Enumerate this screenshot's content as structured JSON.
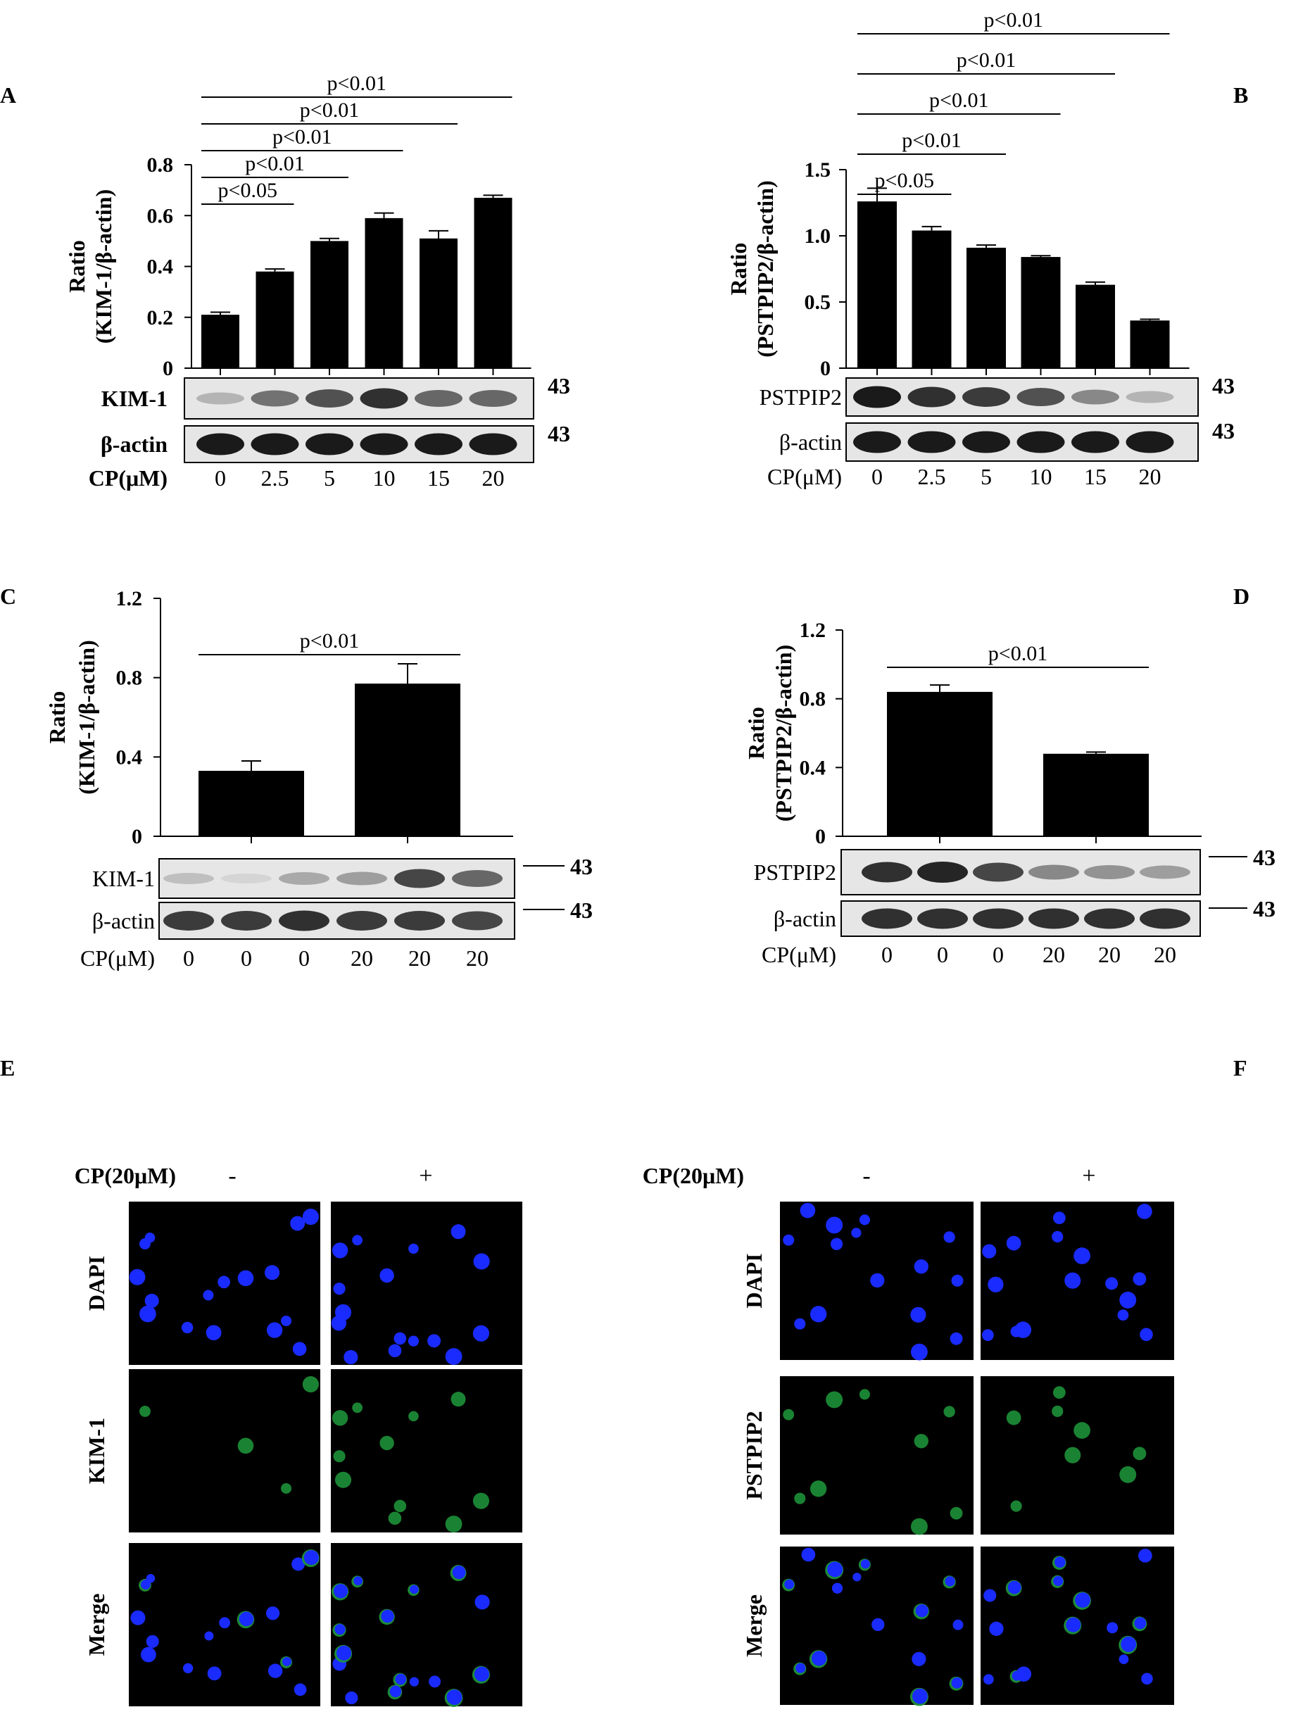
{
  "panels": {
    "A": {
      "letter": "A"
    },
    "B": {
      "letter": "B"
    },
    "C": {
      "letter": "C"
    },
    "D": {
      "letter": "D"
    },
    "E": {
      "letter": "E"
    },
    "F": {
      "letter": "F"
    }
  },
  "chart_data": [
    {
      "id": "A",
      "type": "bar",
      "categories": [
        "0",
        "2.5",
        "5",
        "10",
        "15",
        "20"
      ],
      "values": [
        0.21,
        0.38,
        0.5,
        0.59,
        0.51,
        0.67
      ],
      "errors": [
        0.01,
        0.01,
        0.01,
        0.02,
        0.03,
        0.01
      ],
      "ylim": [
        0,
        0.8
      ],
      "yticks": [
        "0",
        "0.2",
        "0.4",
        "0.6",
        "0.8"
      ],
      "ylabel": [
        "Ratio",
        "(KIM-1/β-actin)"
      ],
      "xlabel": "CP(μM)",
      "significance": [
        {
          "from": 0,
          "to": 1,
          "label": "p<0.05"
        },
        {
          "from": 0,
          "to": 2,
          "label": "p<0.01"
        },
        {
          "from": 0,
          "to": 3,
          "label": "p<0.01"
        },
        {
          "from": 0,
          "to": 4,
          "label": "p<0.01"
        },
        {
          "from": 0,
          "to": 5,
          "label": "p<0.01"
        }
      ],
      "blots": [
        {
          "label": "KIM-1",
          "marker": "43",
          "intensity": [
            0.25,
            0.55,
            0.7,
            0.85,
            0.6,
            0.6
          ]
        },
        {
          "label": "β-actin",
          "marker": "43",
          "intensity": [
            0.95,
            0.95,
            0.95,
            0.95,
            0.95,
            0.95
          ]
        }
      ]
    },
    {
      "id": "B",
      "type": "bar",
      "categories": [
        "0",
        "2.5",
        "5",
        "10",
        "15",
        "20"
      ],
      "values": [
        1.26,
        1.04,
        0.91,
        0.84,
        0.63,
        0.36
      ],
      "errors": [
        0.1,
        0.03,
        0.02,
        0.01,
        0.02,
        0.01
      ],
      "ylim": [
        0,
        1.5
      ],
      "yticks": [
        "0",
        "0.5",
        "1.0",
        "1.5"
      ],
      "ylabel": [
        "Ratio",
        "(PSTPIP2/β-actin)"
      ],
      "xlabel": "CP(μM)",
      "significance": [
        {
          "from": 0,
          "to": 1,
          "label": "p<0.05"
        },
        {
          "from": 0,
          "to": 2,
          "label": "p<0.01"
        },
        {
          "from": 0,
          "to": 3,
          "label": "p<0.01"
        },
        {
          "from": 0,
          "to": 4,
          "label": "p<0.01"
        },
        {
          "from": 0,
          "to": 5,
          "label": "p<0.01"
        }
      ],
      "blots": [
        {
          "label": "PSTPIP2",
          "marker": "43",
          "intensity": [
            0.95,
            0.85,
            0.8,
            0.7,
            0.45,
            0.25
          ]
        },
        {
          "label": "β-actin",
          "marker": "43",
          "intensity": [
            0.95,
            0.95,
            0.95,
            0.95,
            0.95,
            0.95
          ]
        }
      ]
    },
    {
      "id": "C",
      "type": "bar",
      "categories": [
        "",
        ""
      ],
      "values": [
        0.33,
        0.77
      ],
      "errors": [
        0.05,
        0.1
      ],
      "ylim": [
        0,
        1.2
      ],
      "yticks": [
        "0",
        "0.4",
        "0.8",
        "1.2"
      ],
      "ylabel": [
        "Ratio",
        "(KIM-1/β-actin)"
      ],
      "xlabel": "CP(μM)",
      "lanes": [
        "0",
        "0",
        "0",
        "20",
        "20",
        "20"
      ],
      "significance": [
        {
          "from": 0,
          "to": 1,
          "label": "p<0.01"
        }
      ],
      "blots": [
        {
          "label": "KIM-1",
          "marker": "43",
          "intensity": [
            0.2,
            0.1,
            0.3,
            0.35,
            0.75,
            0.6
          ]
        },
        {
          "label": "β-actin",
          "marker": "43",
          "intensity": [
            0.8,
            0.8,
            0.85,
            0.8,
            0.8,
            0.75
          ]
        }
      ]
    },
    {
      "id": "D",
      "type": "bar",
      "categories": [
        "",
        ""
      ],
      "values": [
        0.84,
        0.48
      ],
      "errors": [
        0.04,
        0.01
      ],
      "ylim": [
        0,
        1.2
      ],
      "yticks": [
        "0",
        "0.4",
        "0.8",
        "1.2"
      ],
      "ylabel": [
        "Ratio",
        "(PSTPIP2/β-actin)"
      ],
      "xlabel": "CP(μM)",
      "lanes": [
        "0",
        "0",
        "0",
        "20",
        "20",
        "20"
      ],
      "significance": [
        {
          "from": 0,
          "to": 1,
          "label": "p<0.01"
        }
      ],
      "blots": [
        {
          "label": "PSTPIP2",
          "marker": "43",
          "intensity": [
            0.85,
            0.9,
            0.75,
            0.45,
            0.4,
            0.35
          ]
        },
        {
          "label": "β-actin",
          "marker": "43",
          "intensity": [
            0.85,
            0.85,
            0.85,
            0.85,
            0.85,
            0.85
          ]
        }
      ]
    }
  ],
  "micrographs": [
    {
      "id": "E",
      "treatment_label": "CP(20μM)",
      "columns": [
        "-",
        "+"
      ],
      "rows": [
        "DAPI",
        "KIM-1",
        "Merge"
      ]
    },
    {
      "id": "F",
      "treatment_label": "CP(20μM)",
      "columns": [
        "-",
        "+"
      ],
      "rows": [
        "DAPI",
        "PSTPIP2",
        "Merge"
      ]
    }
  ],
  "colors": {
    "nucleus": "#1a2bff",
    "stain": "#1f9a3c",
    "background": "#000000",
    "bar": "#000000"
  }
}
